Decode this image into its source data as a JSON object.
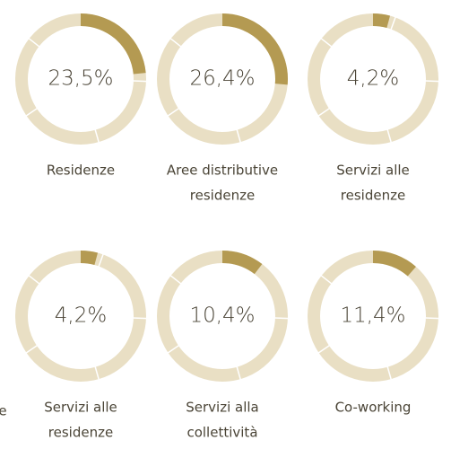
{
  "chart_data": [
    {
      "type": "pie",
      "values": [
        23.5
      ],
      "value_labels": [
        "23,5%"
      ],
      "label_lines": [
        "Residenze"
      ],
      "color": "#b49a52",
      "track_color": "#e9dfc4"
    },
    {
      "type": "pie",
      "values": [
        26.4
      ],
      "value_labels": [
        "26,4%"
      ],
      "label_lines": [
        "Aree distributive",
        "residenze"
      ],
      "color": "#b49a52",
      "track_color": "#e9dfc4"
    },
    {
      "type": "pie",
      "values": [
        4.2
      ],
      "value_labels": [
        "4,2%"
      ],
      "label_lines": [
        "Servizi alle",
        "residenze"
      ],
      "color": "#b49a52",
      "track_color": "#e9dfc4"
    },
    {
      "type": "pie",
      "values": [
        4.2
      ],
      "value_labels": [
        "4,2%"
      ],
      "label_lines": [
        "Servizi alle",
        "residenze"
      ],
      "color": "#b49a52",
      "track_color": "#e9dfc4"
    },
    {
      "type": "pie",
      "values": [
        10.4
      ],
      "value_labels": [
        "10,4%"
      ],
      "label_lines": [
        "Servizi alla",
        "collettività"
      ],
      "color": "#b49a52",
      "track_color": "#e9dfc4"
    },
    {
      "type": "pie",
      "values": [
        11.4
      ],
      "value_labels": [
        "11,4%"
      ],
      "label_lines": [
        "Co-working"
      ],
      "color": "#b49a52",
      "track_color": "#e9dfc4"
    }
  ],
  "cropped_text": "e"
}
